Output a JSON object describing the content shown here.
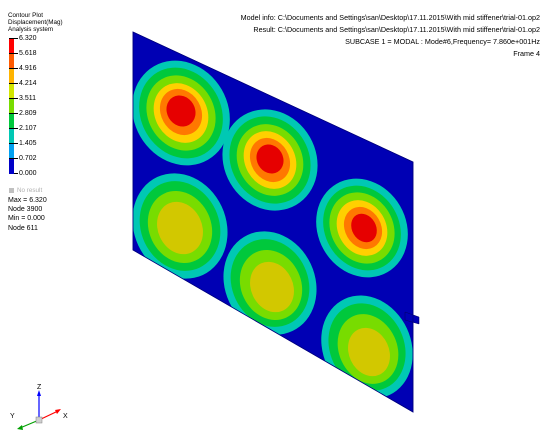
{
  "legend": {
    "title_line1": "Contour Plot",
    "title_line2": "Displacement(Mag)",
    "title_line3": "Analysis system",
    "levels": [
      {
        "value": "6.320",
        "color": "#ff0000"
      },
      {
        "value": "5.618",
        "color": "#ff5a00"
      },
      {
        "value": "4.916",
        "color": "#ffb400"
      },
      {
        "value": "4.214",
        "color": "#d2e600"
      },
      {
        "value": "3.511",
        "color": "#78dc00"
      },
      {
        "value": "2.809",
        "color": "#00c83c"
      },
      {
        "value": "2.107",
        "color": "#00c8b4"
      },
      {
        "value": "1.405",
        "color": "#00a0f0"
      },
      {
        "value": "0.702",
        "color": "#0050e0"
      },
      {
        "value": "0.000",
        "color": "#0000c8"
      }
    ],
    "no_result": "No result",
    "max_label": "Max = 6.320",
    "max_node": "Node 3900",
    "min_label": "Min = 0.000",
    "min_node": "Node 611"
  },
  "info": {
    "model_info": "Model info: C:\\Documents and Settings\\san\\Desktop\\17.11.2015\\With mid stiffener\\trial-01.op2",
    "result": "Result: C:\\Documents and Settings\\san\\Desktop\\17.11.2015\\With mid stiffener\\trial-01.op2",
    "subcase": "SUBCASE 1 = MODAL  : Mode#6,Frequency=  7.860e+001Hz",
    "frame": "Frame 4"
  },
  "triad": {
    "z": "Z",
    "y": "Y",
    "x": "X",
    "color_z": "#0000ff",
    "color_y": "#00a000",
    "color_x": "#ff0000"
  },
  "model": {
    "base_color": "#0000b4"
  }
}
